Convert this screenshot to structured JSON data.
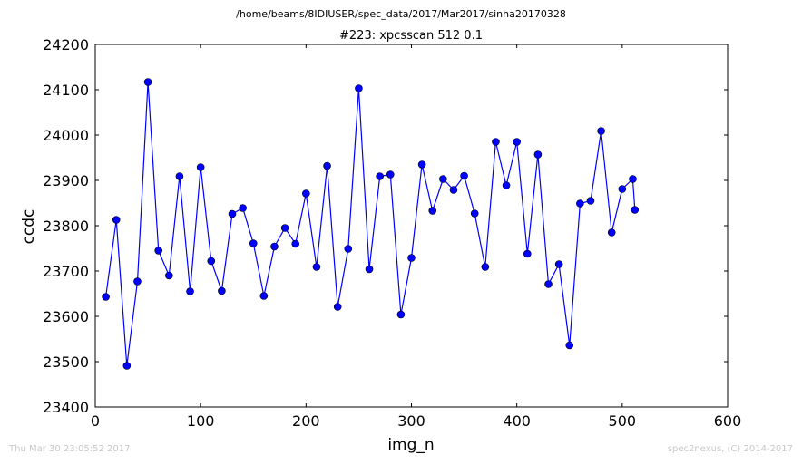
{
  "chart_data": {
    "type": "line",
    "suptitle": "/home/beams/8IDIUSER/spec_data/2017/Mar2017/sinha20170328",
    "title": "#223: xpcsscan 512 0.1",
    "xlabel": "img_n",
    "ylabel": "ccdc",
    "xlim": [
      0,
      600
    ],
    "ylim": [
      23400,
      24200
    ],
    "xticks": [
      0,
      100,
      200,
      300,
      400,
      500,
      600
    ],
    "yticks": [
      23400,
      23500,
      23600,
      23700,
      23800,
      23900,
      24000,
      24100,
      24200
    ],
    "grid": false,
    "series": [
      {
        "color": "#0000ff",
        "marker": "circle",
        "x": [
          10,
          20,
          30,
          40,
          50,
          60,
          70,
          80,
          90,
          100,
          110,
          120,
          130,
          140,
          150,
          160,
          170,
          180,
          190,
          200,
          210,
          220,
          230,
          240,
          250,
          260,
          270,
          280,
          290,
          300,
          310,
          320,
          330,
          340,
          350,
          360,
          370,
          380,
          390,
          400,
          410,
          420,
          430,
          440,
          450,
          460,
          470,
          480,
          490,
          500,
          510,
          512
        ],
        "y": [
          23643,
          23813,
          23491,
          23677,
          24117,
          23745,
          23690,
          23909,
          23655,
          23929,
          23722,
          23656,
          23826,
          23839,
          23761,
          23645,
          23754,
          23795,
          23760,
          23871,
          23709,
          23932,
          23621,
          23749,
          24103,
          23704,
          23909,
          23913,
          23604,
          23729,
          23935,
          23833,
          23903,
          23879,
          23910,
          23827,
          23709,
          23985,
          23889,
          23985,
          23738,
          23957,
          23671,
          23715,
          23536,
          23849,
          23855,
          24009,
          23785,
          23881,
          23903,
          23835
        ]
      }
    ]
  },
  "footer": {
    "timestamp": "Thu Mar 30 23:05:52 2017",
    "credit": "spec2nexus, (C) 2014-2017"
  }
}
